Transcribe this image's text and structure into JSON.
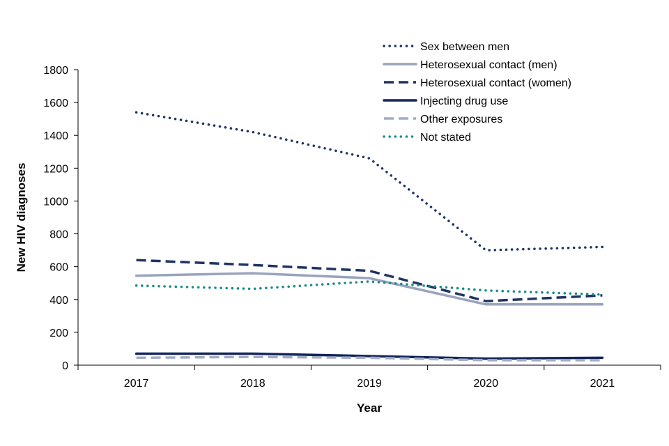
{
  "chart_data": {
    "type": "line",
    "title": "",
    "xlabel": "Year",
    "ylabel": "New HIV diagnoses",
    "categories": [
      "2017",
      "2018",
      "2019",
      "2020",
      "2021"
    ],
    "ylim": [
      0,
      1800
    ],
    "yticks": [
      0,
      200,
      400,
      600,
      800,
      1000,
      1200,
      1400,
      1600,
      1800
    ],
    "grid": false,
    "legend_position": "top-right",
    "series": [
      {
        "name": "Sex between men",
        "values": [
          1540,
          1420,
          1260,
          700,
          720
        ],
        "color": "#1f3364",
        "style": "dotted"
      },
      {
        "name": "Heterosexual contact (men)",
        "values": [
          545,
          560,
          530,
          370,
          370
        ],
        "color": "#9aa3bd",
        "style": "solid"
      },
      {
        "name": "Heterosexual contact (women)",
        "values": [
          640,
          610,
          575,
          390,
          425
        ],
        "color": "#1f3364",
        "style": "dashed"
      },
      {
        "name": "Injecting drug use",
        "values": [
          70,
          70,
          55,
          40,
          45
        ],
        "color": "#12255a",
        "style": "solid"
      },
      {
        "name": "Other exposures",
        "values": [
          45,
          50,
          45,
          30,
          30
        ],
        "color": "#a4acc7",
        "style": "dashed"
      },
      {
        "name": "Not stated",
        "values": [
          485,
          465,
          510,
          455,
          430
        ],
        "color": "#1a8c8c",
        "style": "dotted"
      }
    ]
  }
}
